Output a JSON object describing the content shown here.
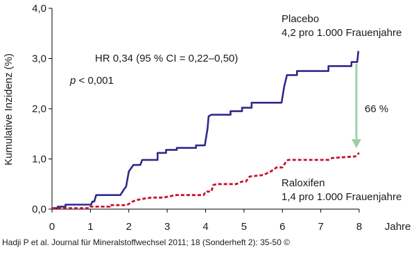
{
  "chart_data": {
    "type": "line",
    "ylabel": "Kumulative Inzidenz (%)",
    "xlabel": "Jahre",
    "xlim": [
      0,
      8
    ],
    "ylim": [
      0,
      4
    ],
    "x_ticks": [
      0,
      1,
      2,
      3,
      4,
      5,
      6,
      7,
      8
    ],
    "x_tick_labels": [
      "0",
      "1",
      "2",
      "3",
      "4",
      "5",
      "6",
      "7",
      "8"
    ],
    "y_ticks": [
      0,
      1,
      2,
      3,
      4
    ],
    "y_tick_labels": [
      "0,0",
      "1,0",
      "2,0",
      "3,0",
      "4,0"
    ],
    "grid": false,
    "series": [
      {
        "name": "Placebo",
        "color": "#2e2a8a",
        "style": "solid",
        "points": [
          [
            0,
            0.02
          ],
          [
            0.15,
            0.02
          ],
          [
            0.15,
            0.05
          ],
          [
            0.35,
            0.05
          ],
          [
            0.35,
            0.09
          ],
          [
            1.02,
            0.09
          ],
          [
            1.05,
            0.15
          ],
          [
            1.1,
            0.15
          ],
          [
            1.15,
            0.28
          ],
          [
            1.78,
            0.28
          ],
          [
            1.88,
            0.4
          ],
          [
            1.93,
            0.45
          ],
          [
            2.0,
            0.75
          ],
          [
            2.12,
            0.88
          ],
          [
            2.3,
            0.88
          ],
          [
            2.35,
            0.98
          ],
          [
            2.75,
            0.98
          ],
          [
            2.75,
            1.12
          ],
          [
            2.97,
            1.12
          ],
          [
            2.97,
            1.18
          ],
          [
            3.25,
            1.18
          ],
          [
            3.25,
            1.22
          ],
          [
            3.75,
            1.22
          ],
          [
            3.75,
            1.27
          ],
          [
            3.98,
            1.27
          ],
          [
            4.05,
            1.6
          ],
          [
            4.08,
            1.85
          ],
          [
            4.15,
            1.88
          ],
          [
            4.65,
            1.88
          ],
          [
            4.65,
            1.95
          ],
          [
            4.95,
            1.95
          ],
          [
            4.95,
            2.02
          ],
          [
            5.2,
            2.02
          ],
          [
            5.2,
            2.12
          ],
          [
            5.98,
            2.12
          ],
          [
            6.05,
            2.45
          ],
          [
            6.12,
            2.67
          ],
          [
            6.38,
            2.67
          ],
          [
            6.38,
            2.75
          ],
          [
            7.2,
            2.75
          ],
          [
            7.2,
            2.85
          ],
          [
            7.8,
            2.85
          ],
          [
            7.8,
            2.93
          ],
          [
            7.95,
            2.93
          ],
          [
            7.98,
            3.15
          ]
        ]
      },
      {
        "name": "Raloxifen",
        "color": "#c8102e",
        "style": "dashed",
        "points": [
          [
            0,
            0.02
          ],
          [
            0.98,
            0.02
          ],
          [
            1.0,
            0.05
          ],
          [
            1.5,
            0.05
          ],
          [
            1.5,
            0.08
          ],
          [
            1.95,
            0.08
          ],
          [
            2.1,
            0.15
          ],
          [
            2.2,
            0.18
          ],
          [
            2.4,
            0.21
          ],
          [
            2.6,
            0.23
          ],
          [
            2.9,
            0.23
          ],
          [
            3.1,
            0.26
          ],
          [
            3.2,
            0.28
          ],
          [
            3.95,
            0.28
          ],
          [
            4.0,
            0.35
          ],
          [
            4.15,
            0.35
          ],
          [
            4.2,
            0.48
          ],
          [
            4.3,
            0.5
          ],
          [
            4.8,
            0.5
          ],
          [
            4.95,
            0.55
          ],
          [
            5.05,
            0.55
          ],
          [
            5.15,
            0.65
          ],
          [
            5.5,
            0.68
          ],
          [
            5.7,
            0.75
          ],
          [
            5.85,
            0.83
          ],
          [
            6.0,
            0.83
          ],
          [
            6.1,
            0.95
          ],
          [
            6.15,
            0.98
          ],
          [
            7.2,
            0.98
          ],
          [
            7.3,
            1.02
          ],
          [
            7.9,
            1.05
          ],
          [
            8.0,
            1.12
          ]
        ]
      }
    ],
    "annotations": {
      "hr": "HR 0,34 (95 % CI = 0,22–0,50)",
      "p_italic": "p",
      "p_rest": " < 0,001",
      "placebo_name": "Placebo",
      "placebo_rate": "4,2 pro 1.000 Frauenjahre",
      "raloxifen_name": "Raloxifen",
      "raloxifen_rate": "1,4 pro 1.000 Frauenjahre",
      "reduction": "66 %",
      "arrow_color": "#9ccfa8"
    }
  },
  "caption": "Hadji P et al. Journal für Mineralstoffwechsel 2011; 18 (Sonderheft 2): 35-50 ©"
}
